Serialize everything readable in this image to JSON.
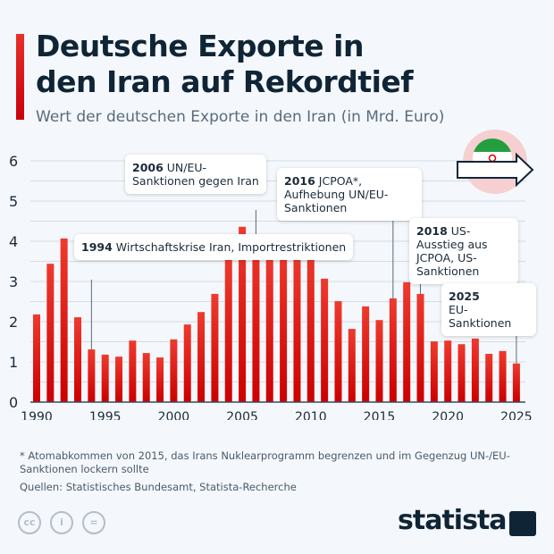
{
  "title_line1": "Deutsche Exporte in",
  "title_line2": "den Iran auf Rekordtief",
  "subtitle": "Wert der deutschen Exporte in den Iran (in Mrd. Euro)",
  "chart_data": {
    "type": "bar",
    "categories": [
      1990,
      1991,
      1992,
      1993,
      1994,
      1995,
      1996,
      1997,
      1998,
      1999,
      2000,
      2001,
      2002,
      2003,
      2004,
      2005,
      2006,
      2007,
      2008,
      2009,
      2010,
      2011,
      2012,
      2013,
      2014,
      2015,
      2016,
      2017,
      2018,
      2019,
      2020,
      2021,
      2022,
      2023,
      2024,
      2025
    ],
    "values": [
      2.18,
      3.44,
      4.07,
      2.11,
      1.31,
      1.18,
      1.13,
      1.53,
      1.22,
      1.11,
      1.56,
      1.93,
      2.24,
      2.69,
      3.56,
      4.36,
      4.16,
      3.6,
      3.91,
      3.78,
      3.78,
      3.07,
      2.51,
      1.82,
      2.38,
      2.04,
      2.58,
      2.98,
      2.69,
      1.51,
      1.53,
      1.44,
      1.58,
      1.2,
      1.27,
      0.96
    ],
    "ylim": [
      0,
      6
    ],
    "yticks": [
      "0",
      "1",
      "2",
      "3",
      "4",
      "5",
      "6"
    ],
    "xticks": [
      "1990",
      "1995",
      "2000",
      "2005",
      "2010",
      "2015",
      "2020",
      "2025"
    ],
    "grid": true,
    "bar_color": "#d40a0a",
    "annotations": [
      {
        "year": "1994",
        "text": "Wirtschaftskrise Iran, Importrestriktionen"
      },
      {
        "year": "2006",
        "text": "UN/EU-Sanktionen gegen Iran"
      },
      {
        "year": "2016",
        "text": "JCPOA*, Aufhebung UN/EU-Sanktionen"
      },
      {
        "year": "2018",
        "text": "US-Ausstieg aus JCPOA, US-Sanktionen"
      },
      {
        "year": "2025",
        "text": "EU-Sanktionen"
      }
    ]
  },
  "footnote": "* Atomabkommen von 2015, das Irans Nuklearprogramm begrenzen und im Gegenzug UN-/EU-Sanktionen lockern sollte",
  "sources": "Quellen: Statistisches Bundesamt, Statista-Recherche",
  "license_icons": [
    "cc-icon",
    "person-icon",
    "equals-icon"
  ],
  "license_labels": [
    "cc",
    "i",
    "="
  ],
  "logo": "statista"
}
